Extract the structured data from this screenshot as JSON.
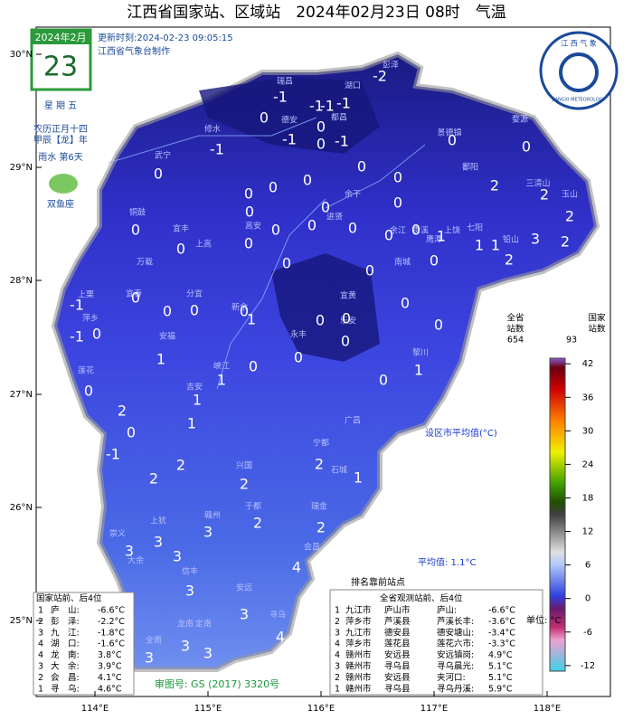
{
  "title": "江西省国家站、区域站　2024年02月23日 08时　气温",
  "calendar": {
    "month": "2024年2月",
    "day": "23",
    "weekday": "星 期 五",
    "lunar": "农历正月十四",
    "ganzhi": "甲辰【龙】年",
    "solar_term": "雨水 第6天",
    "zodiac": "双鱼座"
  },
  "update_time": "更新时刻:2024-02-23 09:05:15",
  "producer": "江西省气象台制作",
  "logo": {
    "top": "江 西 气 象",
    "bottom": "JIANGXI METEOROLOGY"
  },
  "lat_labels": [
    "30°N",
    "29°N",
    "28°N",
    "27°N",
    "26°N",
    "25°N"
  ],
  "lon_labels": [
    "114°E",
    "115°E",
    "116°E",
    "117°E",
    "118°E"
  ],
  "city_names": [
    "瑞昌",
    "彭泽",
    "德安",
    "修水",
    "武宁",
    "景德镇",
    "婺源",
    "铜鼓",
    "宜丰",
    "上高",
    "高安",
    "万载",
    "宜春",
    "萍乡",
    "上栗",
    "分宜",
    "新余",
    "莲花",
    "安福",
    "吉安",
    "峡江",
    "永丰",
    "乐安",
    "宜黄",
    "南城",
    "黎川",
    "广昌",
    "宁都",
    "石城",
    "瑞金",
    "于都",
    "兴国",
    "赣州",
    "上犹",
    "崇义",
    "大余",
    "信丰",
    "安远",
    "会昌",
    "寻乌",
    "定南",
    "龙南",
    "全南",
    "上饶",
    "玉山",
    "三清山",
    "鹰潭",
    "贵溪",
    "余江",
    "七阳",
    "铅山",
    "进贤",
    "余干",
    "鄱阳",
    "都昌",
    "湖口"
  ],
  "station_values": [
    -2,
    -1,
    -1,
    -1,
    -1,
    0,
    0,
    -1,
    -1,
    -1,
    0,
    0,
    0,
    0,
    0,
    0,
    0,
    0,
    2,
    2,
    0,
    0,
    0,
    0,
    2,
    0,
    0,
    0,
    0,
    0,
    0,
    0,
    0,
    1,
    1,
    1,
    3,
    2,
    2,
    0,
    0,
    0,
    0,
    0,
    0,
    0,
    1,
    0,
    0,
    0,
    0,
    -1,
    0,
    -1,
    1,
    0,
    0,
    0,
    1,
    0,
    0,
    1,
    2,
    1,
    0,
    1,
    -1,
    2,
    2,
    2,
    2,
    1,
    3,
    2,
    2,
    3,
    3,
    3,
    4,
    3,
    3,
    4,
    3,
    3,
    3
  ],
  "extreme_title": "排名靠前站点",
  "city_avg_label": "设区市平均值(°C)",
  "average": "平均值: 1.1°C",
  "legend": {
    "province": [
      "全省",
      "站数"
    ],
    "national": [
      "国家",
      "站数"
    ],
    "province_total": "654",
    "national_total": "93",
    "range": [
      -13,
      43
    ],
    "ticks": [
      42,
      36,
      30,
      24,
      18,
      12,
      6,
      0,
      -6,
      -12
    ],
    "unit": "单位: °C"
  },
  "national_rank": {
    "title": "国家站前、后4位",
    "rows": [
      [
        "1",
        "庐　山:",
        "-6.6°C"
      ],
      [
        "2",
        "彭　泽:",
        "-2.2°C"
      ],
      [
        "3",
        "九　江:",
        "-1.8°C"
      ],
      [
        "4",
        "湖　口:",
        "-1.6°C"
      ],
      [
        "4",
        "龙　南:",
        "3.8°C"
      ],
      [
        "3",
        "大　余:",
        "3.9°C"
      ],
      [
        "2",
        "会　昌:",
        "4.1°C"
      ],
      [
        "1",
        "寻　乌:",
        "4.6°C"
      ]
    ]
  },
  "all_rank": {
    "title": "全省观测站前、后4位",
    "rows": [
      [
        "1",
        "九江市",
        "庐山市",
        "庐山:",
        "-6.6°C"
      ],
      [
        "2",
        "萍乡市",
        "芦溪县",
        "芦溪长丰:",
        "-3.6°C"
      ],
      [
        "3",
        "九江市",
        "德安县",
        "德安塘山:",
        "-3.4°C"
      ],
      [
        "4",
        "萍乡市",
        "莲花县",
        "莲花六市:",
        "-3.3°C"
      ],
      [
        "4",
        "赣州市",
        "安远县",
        "安远镇岗:",
        "4.9°C"
      ],
      [
        "3",
        "赣州市",
        "寻乌县",
        "寻乌晨光:",
        "5.1°C"
      ],
      [
        "2",
        "赣州市",
        "安远县",
        "夹河口:",
        "5.1°C"
      ],
      [
        "1",
        "赣州市",
        "寻乌县",
        "寻乌丹溪:",
        "5.9°C"
      ]
    ]
  },
  "review_number": "审图号: GS (2017) 3320号"
}
